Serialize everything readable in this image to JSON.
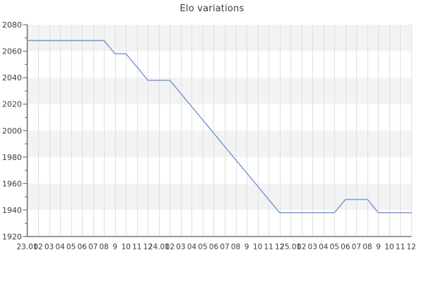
{
  "chart_data": {
    "type": "line",
    "title": "Elo variations",
    "x_labels": [
      "23.01",
      "02",
      "03",
      "04",
      "05",
      "06",
      "07",
      "08",
      "9",
      "10",
      "11",
      "12",
      "24.01",
      "02",
      "03",
      "04",
      "05",
      "06",
      "07",
      "08",
      "9",
      "10",
      "11",
      "12",
      "25.01",
      "02",
      "03",
      "04",
      "05",
      "06",
      "07",
      "08",
      "9",
      "10",
      "11",
      "12"
    ],
    "values": [
      2068,
      2068,
      2068,
      2068,
      2068,
      2068,
      2068,
      2068,
      2058,
      2058,
      2048,
      2038,
      2038,
      2038,
      2028,
      2018,
      2008,
      1998,
      1988,
      1978,
      1968,
      1958,
      1948,
      1938,
      1938,
      1938,
      1938,
      1938,
      1938,
      1948,
      1948,
      1948,
      1938,
      1938,
      1938,
      1938
    ],
    "ylim": [
      1920,
      2080
    ],
    "y_ticks": [
      1920,
      1940,
      1960,
      1980,
      2000,
      2020,
      2040,
      2060,
      2080
    ],
    "y_minor_ticks": [
      1930,
      1950,
      1970,
      1990,
      2010,
      2030,
      2050,
      2070
    ],
    "grid": true,
    "legend": "none",
    "colors": {
      "line": "#7195d6",
      "band": "#f3f3f3",
      "grid": "#e0e0e0",
      "axis": "#737373",
      "text": "#3d3d3d",
      "title_text": "#3c3c3c"
    }
  }
}
